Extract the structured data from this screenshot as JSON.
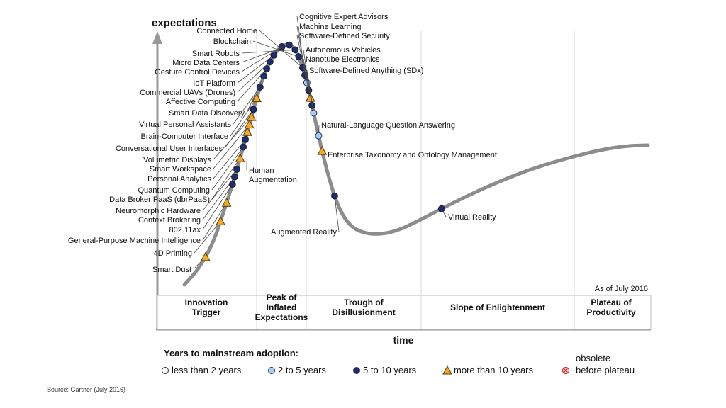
{
  "chart_data": {
    "type": "hype-cycle",
    "y_axis_label": "expectations",
    "x_axis_label": "time",
    "as_of": "As of July 2016",
    "phases": [
      {
        "lines": [
          "Innovation",
          "Trigger"
        ]
      },
      {
        "lines": [
          "Peak of",
          "Inflated",
          "Expectations"
        ]
      },
      {
        "lines": [
          "Trough of",
          "Disillusionment"
        ]
      },
      {
        "lines": [
          "Slope of Enlightenment"
        ]
      },
      {
        "lines": [
          "Plateau of",
          "Productivity"
        ]
      }
    ],
    "legend": {
      "title": "Years to mainstream adoption:",
      "items": [
        {
          "key": "lt2",
          "label": "less than 2 years"
        },
        {
          "key": "2to5",
          "label": "2 to 5 years"
        },
        {
          "key": "5to10",
          "label": "5 to 10 years"
        },
        {
          "key": "gt10",
          "label": "more than 10 years"
        },
        {
          "key": "obsolete",
          "label_lines": [
            "obsolete",
            "before plateau"
          ]
        }
      ]
    },
    "technologies": [
      {
        "name": "Smart Dust",
        "t": 0.045,
        "adoption": "gt10",
        "side": "left"
      },
      {
        "name": "4D Printing",
        "t": 0.095,
        "adoption": "gt10",
        "side": "left"
      },
      {
        "name": "General-Purpose Machine Intelligence",
        "t": 0.12,
        "adoption": "gt10",
        "side": "left"
      },
      {
        "name": "802.11ax",
        "t": 0.145,
        "adoption": "5to10",
        "side": "left"
      },
      {
        "name": "Context Brokering",
        "t": 0.155,
        "adoption": "5to10",
        "side": "left"
      },
      {
        "name": "Neuromorphic Hardware",
        "t": 0.165,
        "adoption": "5to10",
        "side": "left"
      },
      {
        "name": "Data Broker PaaS (dbrPaaS)",
        "t": 0.18,
        "adoption": "gt10",
        "side": "left"
      },
      {
        "name": "Quantum Computing",
        "t": 0.195,
        "adoption": "5to10",
        "side": "left"
      },
      {
        "name": "Personal Analytics",
        "t": 0.205,
        "adoption": "5to10",
        "side": "left"
      },
      {
        "name": "Human Augmentation",
        "t": 0.215,
        "adoption": "gt10",
        "side": "right"
      },
      {
        "name": "Smart Workspace",
        "t": 0.225,
        "adoption": "gt10",
        "side": "left"
      },
      {
        "name": "Volumetric Displays",
        "t": 0.235,
        "adoption": "gt10",
        "side": "left"
      },
      {
        "name": "Conversational User Interfaces",
        "t": 0.245,
        "adoption": "5to10",
        "side": "left"
      },
      {
        "name": "Brain-Computer Interface",
        "t": 0.26,
        "adoption": "gt10",
        "side": "left"
      },
      {
        "name": "Virtual Personal Assistants",
        "t": 0.275,
        "adoption": "5to10",
        "side": "left"
      },
      {
        "name": "Smart Data Discovery",
        "t": 0.29,
        "adoption": "5to10",
        "side": "left"
      },
      {
        "name": "Affective Computing",
        "t": 0.3,
        "adoption": "5to10",
        "side": "left"
      },
      {
        "name": "Commercial UAVs (Drones)",
        "t": 0.31,
        "adoption": "5to10",
        "side": "left"
      },
      {
        "name": "IoT Platform",
        "t": 0.32,
        "adoption": "5to10",
        "side": "left"
      },
      {
        "name": "Gesture Control Devices",
        "t": 0.335,
        "adoption": "5to10",
        "side": "left"
      },
      {
        "name": "Micro Data Centers",
        "t": 0.345,
        "adoption": "5to10",
        "side": "left"
      },
      {
        "name": "Smart Robots",
        "t": 0.355,
        "adoption": "5to10",
        "side": "left"
      },
      {
        "name": "Blockchain",
        "t": 0.365,
        "adoption": "5to10",
        "side": "left"
      },
      {
        "name": "Connected Home",
        "t": 0.38,
        "adoption": "5to10",
        "side": "left"
      },
      {
        "name": "Cognitive Expert Advisors",
        "t": 0.39,
        "adoption": "5to10",
        "side": "right"
      },
      {
        "name": "Machine Learning",
        "t": 0.4,
        "adoption": "2to5",
        "side": "right"
      },
      {
        "name": "Software-Defined Security",
        "t": 0.41,
        "adoption": "5to10",
        "side": "right"
      },
      {
        "name": "Autonomous Vehicles",
        "t": 0.42,
        "adoption": "gt10",
        "side": "right"
      },
      {
        "name": "Nanotube Electronics",
        "t": 0.43,
        "adoption": "5to10",
        "side": "right"
      },
      {
        "name": "Software-Defined Anything (SDx)",
        "t": 0.44,
        "adoption": "2to5",
        "side": "right"
      },
      {
        "name": "Natural-Language Question Answering",
        "t": 0.47,
        "adoption": "2to5",
        "side": "right"
      },
      {
        "name": "Enterprise Taxonomy and Ontology Management",
        "t": 0.49,
        "adoption": "gt10",
        "side": "right"
      },
      {
        "name": "Augmented Reality",
        "t": 0.55,
        "adoption": "5to10",
        "side": "left"
      },
      {
        "name": "Virtual Reality",
        "t": 0.72,
        "adoption": "5to10",
        "side": "right"
      }
    ],
    "colors": {
      "curve": "#8c8c8c",
      "axis": "#999999",
      "dark_marker": "#1f2d6e",
      "light_marker": "#a9cde8",
      "triangle": "#f0a830",
      "obsolete": "#cc2222"
    }
  },
  "source": "Source: Gartner (July 2016)"
}
